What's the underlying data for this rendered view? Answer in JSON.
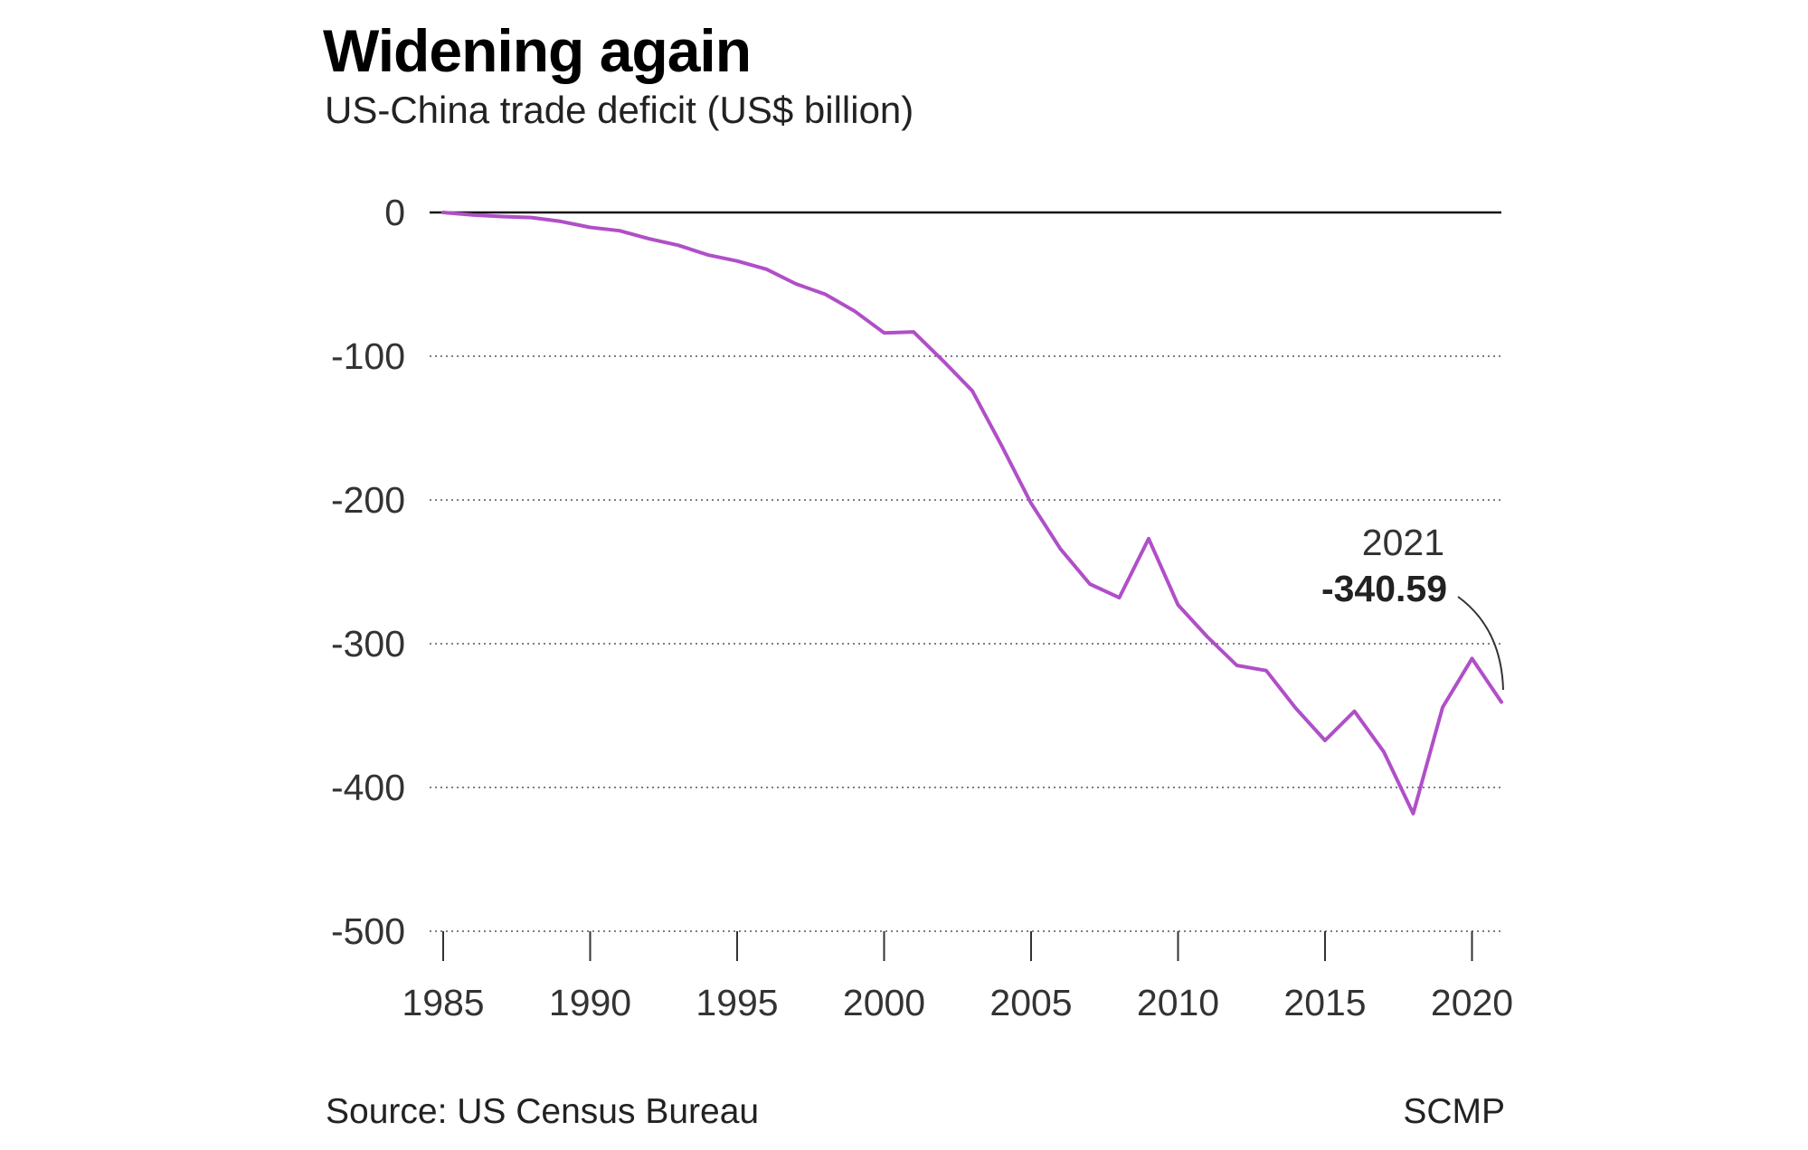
{
  "header": {
    "title": "Widening again",
    "subtitle": "US-China trade deficit (US$ billion)"
  },
  "footer": {
    "source": "Source: US Census Bureau",
    "credit": "SCMP"
  },
  "colors": {
    "series": "#b04fc8",
    "zero_line": "#111111",
    "grid": "#555555",
    "text": "#333333"
  },
  "chart_data": {
    "type": "line",
    "title": "Widening again",
    "subtitle": "US-China trade deficit (US$ billion)",
    "xlabel": "",
    "ylabel": "",
    "x": [
      1985,
      1986,
      1987,
      1988,
      1989,
      1990,
      1991,
      1992,
      1993,
      1994,
      1995,
      1996,
      1997,
      1998,
      1999,
      2000,
      2001,
      2002,
      2003,
      2004,
      2005,
      2006,
      2007,
      2008,
      2009,
      2010,
      2011,
      2012,
      2013,
      2014,
      2015,
      2016,
      2017,
      2018,
      2019,
      2020,
      2021
    ],
    "series": [
      {
        "values": [
          -0.0,
          -1.7,
          -2.8,
          -3.5,
          -6.2,
          -10.4,
          -12.7,
          -18.3,
          -22.8,
          -29.5,
          -33.8,
          -39.5,
          -49.7,
          -56.9,
          -68.7,
          -83.8,
          -83.1,
          -103.1,
          -124.1,
          -162.3,
          -202.3,
          -234.1,
          -258.5,
          -268.0,
          -226.9,
          -273.0,
          -295.3,
          -315.1,
          -318.7,
          -344.8,
          -367.3,
          -347.0,
          -375.2,
          -418.2,
          -344.3,
          -310.3,
          -340.59
        ]
      }
    ],
    "xlim": [
      1985,
      2021
    ],
    "ylim": [
      -500,
      0
    ],
    "xticks": [
      "1985",
      "1990",
      "1995",
      "2000",
      "2005",
      "2010",
      "2015",
      "2020"
    ],
    "yticks": [
      "0",
      "-100",
      "-200",
      "-300",
      "-400",
      "-500"
    ],
    "grid": "horizontal dotted",
    "annotation": {
      "year": "2021",
      "value": "-340.59",
      "x": 2021,
      "y": -340.59
    }
  }
}
